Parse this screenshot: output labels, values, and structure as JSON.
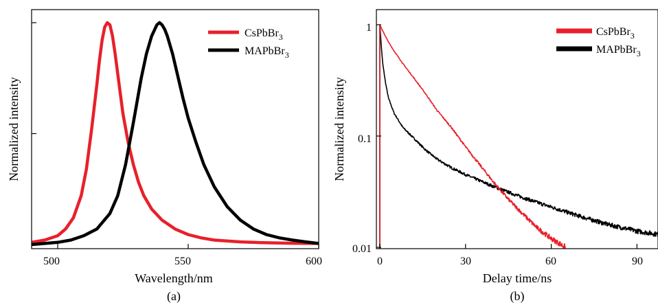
{
  "chart_data": [
    {
      "type": "line",
      "panel_label": "(a)",
      "xlabel": "Wavelength/nm",
      "ylabel": "Normalized intensity",
      "xlim": [
        490,
        600
      ],
      "ylim": [
        0,
        1
      ],
      "x_ticks": [
        500,
        550,
        600
      ],
      "y_ticks": [
        0.5,
        1.0
      ],
      "y_tick_labels_shown": false,
      "grid": false,
      "legend_position": "top-right",
      "series": [
        {
          "name": "CsPbBr",
          "subscript": "3",
          "color": "#e8202a",
          "x": [
            490,
            495,
            500,
            503,
            506,
            509,
            511,
            513,
            515,
            516,
            517,
            518,
            519,
            520,
            521,
            522,
            523,
            524,
            525,
            527,
            529,
            531,
            533,
            536,
            540,
            545,
            550,
            555,
            560,
            570,
            580,
            590,
            600
          ],
          "values": [
            0.01,
            0.02,
            0.04,
            0.07,
            0.12,
            0.22,
            0.34,
            0.52,
            0.72,
            0.83,
            0.92,
            0.98,
            1.0,
            0.99,
            0.94,
            0.86,
            0.77,
            0.68,
            0.59,
            0.46,
            0.36,
            0.28,
            0.22,
            0.16,
            0.11,
            0.07,
            0.045,
            0.03,
            0.02,
            0.012,
            0.008,
            0.006,
            0.005
          ]
        },
        {
          "name": "MAPbBr",
          "subscript": "3",
          "color": "#000000",
          "x": [
            490,
            500,
            505,
            510,
            515,
            520,
            523,
            526,
            529,
            532,
            534,
            536,
            538,
            539,
            540,
            541,
            542,
            544,
            546,
            548,
            550,
            553,
            556,
            560,
            565,
            570,
            575,
            580,
            585,
            590,
            595,
            600
          ],
          "values": [
            0.0,
            0.01,
            0.02,
            0.04,
            0.07,
            0.14,
            0.22,
            0.36,
            0.55,
            0.75,
            0.86,
            0.94,
            0.99,
            1.0,
            0.99,
            0.97,
            0.94,
            0.86,
            0.76,
            0.66,
            0.57,
            0.46,
            0.36,
            0.26,
            0.17,
            0.11,
            0.07,
            0.045,
            0.03,
            0.02,
            0.012,
            0.005
          ]
        }
      ]
    },
    {
      "type": "line",
      "panel_label": "(b)",
      "xlabel": "Delay time/ns",
      "ylabel": "Normalized intensity",
      "xlim": [
        -1,
        98
      ],
      "ylim": [
        0.01,
        1.2
      ],
      "y_scale": "log",
      "x_ticks": [
        0,
        30,
        60,
        90
      ],
      "y_ticks": [
        0.01,
        0.1,
        1
      ],
      "y_tick_labels": [
        "0.01",
        "0.1",
        "1"
      ],
      "grid": false,
      "legend_position": "top-right",
      "series": [
        {
          "name": "CsPbBr",
          "subscript": "3",
          "color": "#e8202a",
          "x": [
            0,
            1,
            3,
            5,
            8,
            12,
            16,
            20,
            25,
            30,
            35,
            40,
            45,
            50,
            55,
            60,
            65
          ],
          "values": [
            1.0,
            0.88,
            0.7,
            0.58,
            0.45,
            0.33,
            0.24,
            0.17,
            0.12,
            0.08,
            0.055,
            0.038,
            0.027,
            0.02,
            0.015,
            0.012,
            0.01
          ]
        },
        {
          "name": "MAPbBr",
          "subscript": "3",
          "color": "#000000",
          "x": [
            0,
            0.5,
            1,
            2,
            3,
            5,
            8,
            12,
            16,
            20,
            25,
            30,
            40,
            50,
            60,
            70,
            80,
            90,
            98
          ],
          "values": [
            1.0,
            0.65,
            0.45,
            0.3,
            0.22,
            0.16,
            0.12,
            0.095,
            0.075,
            0.062,
            0.052,
            0.045,
            0.035,
            0.028,
            0.023,
            0.019,
            0.016,
            0.014,
            0.013
          ]
        }
      ]
    }
  ]
}
